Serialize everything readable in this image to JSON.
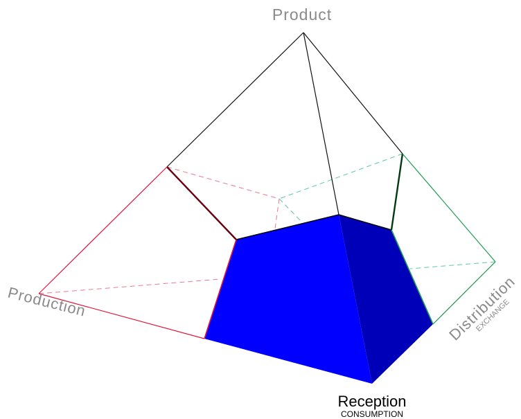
{
  "labels": {
    "product": "Product",
    "production": "Production",
    "distribution": "Distribution",
    "distribution_sub": "EXCHANGE",
    "reception": "Reception",
    "reception_sub": "CONSUMPTION"
  },
  "colors": {
    "production_edge": "#e0143c",
    "distribution_edge": "#1a9a50",
    "production_dashed": "#e87a90",
    "distribution_dashed": "#5cc8a0",
    "outline": "#111111",
    "blue_front": "#0000ff",
    "blue_side": "#0000b8",
    "label_gray": "#8a8a8a",
    "label_black": "#000000"
  }
}
